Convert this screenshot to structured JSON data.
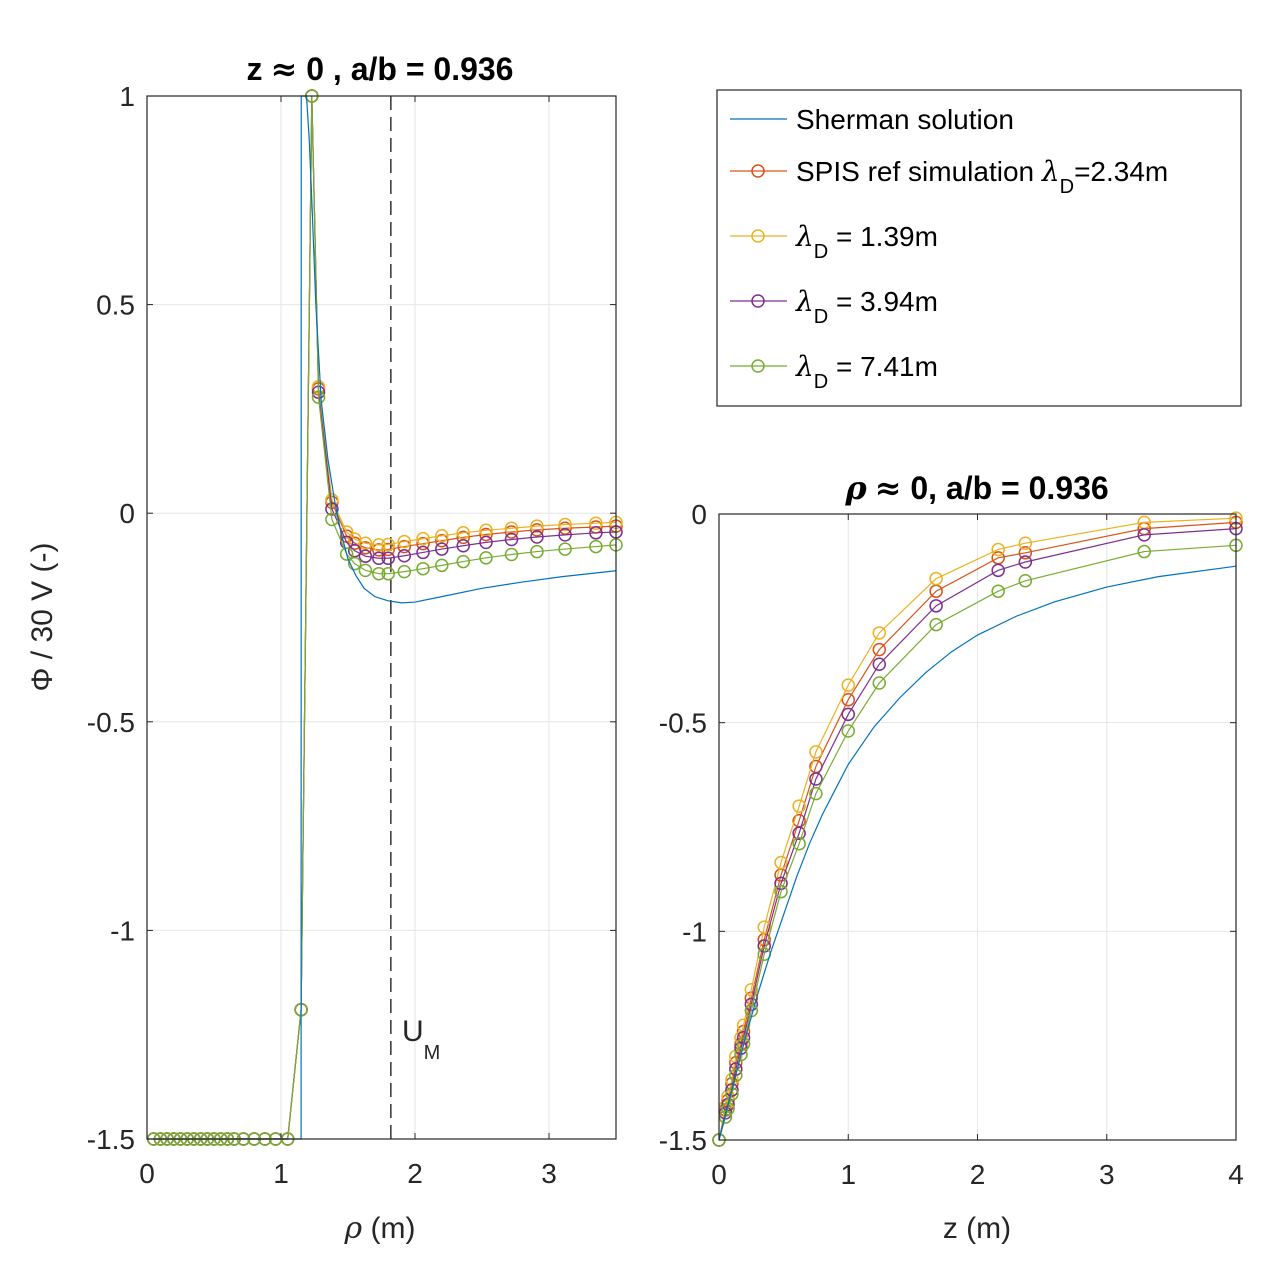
{
  "chart_data": [
    {
      "type": "line",
      "id": "left",
      "title": {
        "lhs": "z",
        "approx": "≈",
        "rest": " 0 ,  a/b = 0.936"
      },
      "xlabel": {
        "sym": "ρ",
        "rest": " (m)"
      },
      "ylabel": "Φ / 30 V (-)",
      "xlim": [
        0,
        3.5
      ],
      "ylim": [
        -1.5,
        1
      ],
      "xticks": [
        0,
        1,
        2,
        3
      ],
      "yticks": [
        -1.5,
        -1,
        -0.5,
        0,
        0.5,
        1
      ],
      "xticklabels": [
        "0",
        "1",
        "2",
        "3"
      ],
      "yticklabels": [
        "-1.5",
        "-1",
        "-0.5",
        "0",
        "0.5",
        "1"
      ],
      "grid": true,
      "vline": {
        "x": 1.82,
        "label": "U",
        "label_sub": "M"
      },
      "sherman": {
        "x": [
          0,
          1.15,
          1.151,
          1.17,
          1.19,
          1.21,
          1.23,
          1.26,
          1.3,
          1.35,
          1.4,
          1.45,
          1.5,
          1.56,
          1.62,
          1.7,
          1.8,
          1.9,
          2.0,
          2.2,
          2.5,
          2.8,
          3.1,
          3.5
        ],
        "y": [
          -1.5,
          -1.5,
          1,
          1,
          1,
          0.9,
          0.75,
          0.5,
          0.27,
          0.13,
          0.03,
          -0.05,
          -0.11,
          -0.15,
          -0.18,
          -0.2,
          -0.21,
          -0.215,
          -0.213,
          -0.2,
          -0.18,
          -0.165,
          -0.152,
          -0.138
        ]
      },
      "sim_x": [
        0.05,
        0.1,
        0.15,
        0.2,
        0.25,
        0.3,
        0.35,
        0.4,
        0.45,
        0.5,
        0.55,
        0.6,
        0.65,
        0.72,
        0.8,
        0.88,
        0.96,
        1.05,
        1.15,
        1.23,
        1.28,
        1.38,
        1.49,
        1.55,
        1.63,
        1.73,
        1.8,
        1.92,
        2.06,
        2.2,
        2.36,
        2.53,
        2.72,
        2.91,
        3.12,
        3.35,
        3.5
      ],
      "series": [
        {
          "name": "SPIS ref simulation",
          "legend_lambda": "λ",
          "legend_sub": "D",
          "legend_rest": "=2.34m",
          "color": "#D95319",
          "y": [
            -1.5,
            -1.5,
            -1.5,
            -1.5,
            -1.5,
            -1.5,
            -1.5,
            -1.5,
            -1.5,
            -1.5,
            -1.5,
            -1.5,
            -1.5,
            -1.5,
            -1.5,
            -1.5,
            -1.5,
            -1.5,
            -1.19,
            1.0,
            0.298,
            0.026,
            -0.055,
            -0.072,
            -0.083,
            -0.088,
            -0.087,
            -0.08,
            -0.073,
            -0.066,
            -0.058,
            -0.051,
            -0.045,
            -0.04,
            -0.036,
            -0.033,
            -0.031
          ]
        },
        {
          "name": "",
          "legend_lambda": "λ",
          "legend_sub": "D",
          "legend_rest": " = 1.39m",
          "color": "#EDB120",
          "y": [
            -1.5,
            -1.5,
            -1.5,
            -1.5,
            -1.5,
            -1.5,
            -1.5,
            -1.5,
            -1.5,
            -1.5,
            -1.5,
            -1.5,
            -1.5,
            -1.5,
            -1.5,
            -1.5,
            -1.5,
            -1.5,
            -1.19,
            1.0,
            0.303,
            0.032,
            -0.045,
            -0.062,
            -0.072,
            -0.076,
            -0.075,
            -0.068,
            -0.061,
            -0.054,
            -0.047,
            -0.041,
            -0.036,
            -0.031,
            -0.027,
            -0.024,
            -0.022
          ]
        },
        {
          "name": "",
          "legend_lambda": "λ",
          "legend_sub": "D",
          "legend_rest": " = 3.94m",
          "color": "#7E2F8E",
          "y": [
            -1.5,
            -1.5,
            -1.5,
            -1.5,
            -1.5,
            -1.5,
            -1.5,
            -1.5,
            -1.5,
            -1.5,
            -1.5,
            -1.5,
            -1.5,
            -1.5,
            -1.5,
            -1.5,
            -1.5,
            -1.5,
            -1.19,
            1.0,
            0.29,
            0.01,
            -0.07,
            -0.09,
            -0.103,
            -0.108,
            -0.108,
            -0.102,
            -0.094,
            -0.086,
            -0.078,
            -0.07,
            -0.063,
            -0.057,
            -0.052,
            -0.047,
            -0.045
          ]
        },
        {
          "name": "",
          "legend_lambda": "λ",
          "legend_sub": "D",
          "legend_rest": " = 7.41m",
          "color": "#77AC30",
          "y": [
            -1.5,
            -1.5,
            -1.5,
            -1.5,
            -1.5,
            -1.5,
            -1.5,
            -1.5,
            -1.5,
            -1.5,
            -1.5,
            -1.5,
            -1.5,
            -1.5,
            -1.5,
            -1.5,
            -1.5,
            -1.5,
            -1.19,
            1.0,
            0.278,
            -0.015,
            -0.098,
            -0.121,
            -0.137,
            -0.145,
            -0.145,
            -0.14,
            -0.133,
            -0.125,
            -0.116,
            -0.107,
            -0.099,
            -0.092,
            -0.086,
            -0.08,
            -0.076
          ]
        }
      ]
    },
    {
      "type": "line",
      "id": "right",
      "title": {
        "lhs": "ρ",
        "approx": "≈",
        "rest": " 0, a/b = 0.936"
      },
      "xlabel": {
        "sym": "",
        "rest": "z (m)"
      },
      "xlim": [
        0,
        4
      ],
      "ylim": [
        -1.5,
        0
      ],
      "xticks": [
        0,
        1,
        2,
        3,
        4
      ],
      "yticks": [
        -1.5,
        -1,
        -0.5,
        0
      ],
      "xticklabels": [
        "0",
        "1",
        "2",
        "3",
        "4"
      ],
      "yticklabels": [
        "-1.5",
        "-1",
        "-0.5",
        "0"
      ],
      "grid": true,
      "sherman": {
        "x": [
          0,
          0.05,
          0.1,
          0.15,
          0.2,
          0.3,
          0.4,
          0.5,
          0.6,
          0.7,
          0.8,
          0.9,
          1.0,
          1.2,
          1.4,
          1.6,
          1.8,
          2.0,
          2.3,
          2.6,
          3.0,
          3.4,
          4.0
        ],
        "y": [
          -1.5,
          -1.44,
          -1.38,
          -1.32,
          -1.26,
          -1.15,
          -1.05,
          -0.96,
          -0.87,
          -0.79,
          -0.72,
          -0.66,
          -0.6,
          -0.51,
          -0.44,
          -0.38,
          -0.33,
          -0.29,
          -0.245,
          -0.21,
          -0.175,
          -0.15,
          -0.125
        ]
      },
      "sim_x": [
        0.0,
        0.05,
        0.07,
        0.1,
        0.13,
        0.17,
        0.19,
        0.25,
        0.35,
        0.48,
        0.62,
        0.75,
        1.0,
        1.24,
        1.68,
        2.16,
        2.37,
        3.29,
        4.0
      ],
      "series": [
        {
          "name": "SPIS ref simulation",
          "color": "#D95319",
          "y": [
            -1.5,
            -1.428,
            -1.405,
            -1.365,
            -1.315,
            -1.27,
            -1.24,
            -1.16,
            -1.02,
            -0.865,
            -0.735,
            -0.605,
            -0.445,
            -0.325,
            -0.185,
            -0.105,
            -0.093,
            -0.035,
            -0.02
          ]
        },
        {
          "name": "",
          "color": "#EDB120",
          "y": [
            -1.5,
            -1.42,
            -1.395,
            -1.355,
            -1.3,
            -1.255,
            -1.225,
            -1.14,
            -0.99,
            -0.835,
            -0.7,
            -0.57,
            -0.41,
            -0.285,
            -0.155,
            -0.085,
            -0.07,
            -0.02,
            -0.01
          ]
        },
        {
          "name": "",
          "color": "#7E2F8E",
          "y": [
            -1.5,
            -1.435,
            -1.415,
            -1.38,
            -1.33,
            -1.28,
            -1.255,
            -1.175,
            -1.035,
            -0.885,
            -0.765,
            -0.635,
            -0.48,
            -0.36,
            -0.22,
            -0.135,
            -0.115,
            -0.05,
            -0.035
          ]
        },
        {
          "name": "",
          "color": "#77AC30",
          "y": [
            -1.5,
            -1.445,
            -1.425,
            -1.39,
            -1.345,
            -1.295,
            -1.27,
            -1.19,
            -1.055,
            -0.905,
            -0.79,
            -0.67,
            -0.52,
            -0.405,
            -0.265,
            -0.185,
            -0.16,
            -0.09,
            -0.075
          ]
        }
      ]
    }
  ],
  "legend": {
    "sherman_label": "Sherman solution",
    "sherman_color": "#0072BD",
    "ref_text": "SPIS ref simulation ",
    "ref_lambda": "λ",
    "ref_sub": "D",
    "ref_rest": "=2.34m",
    "items": [
      {
        "lambda": "λ",
        "sub": "D",
        "rest": " = 1.39m"
      },
      {
        "lambda": "λ",
        "sub": "D",
        "rest": " = 3.94m"
      },
      {
        "lambda": "λ",
        "sub": "D",
        "rest": " = 7.41m"
      }
    ]
  }
}
